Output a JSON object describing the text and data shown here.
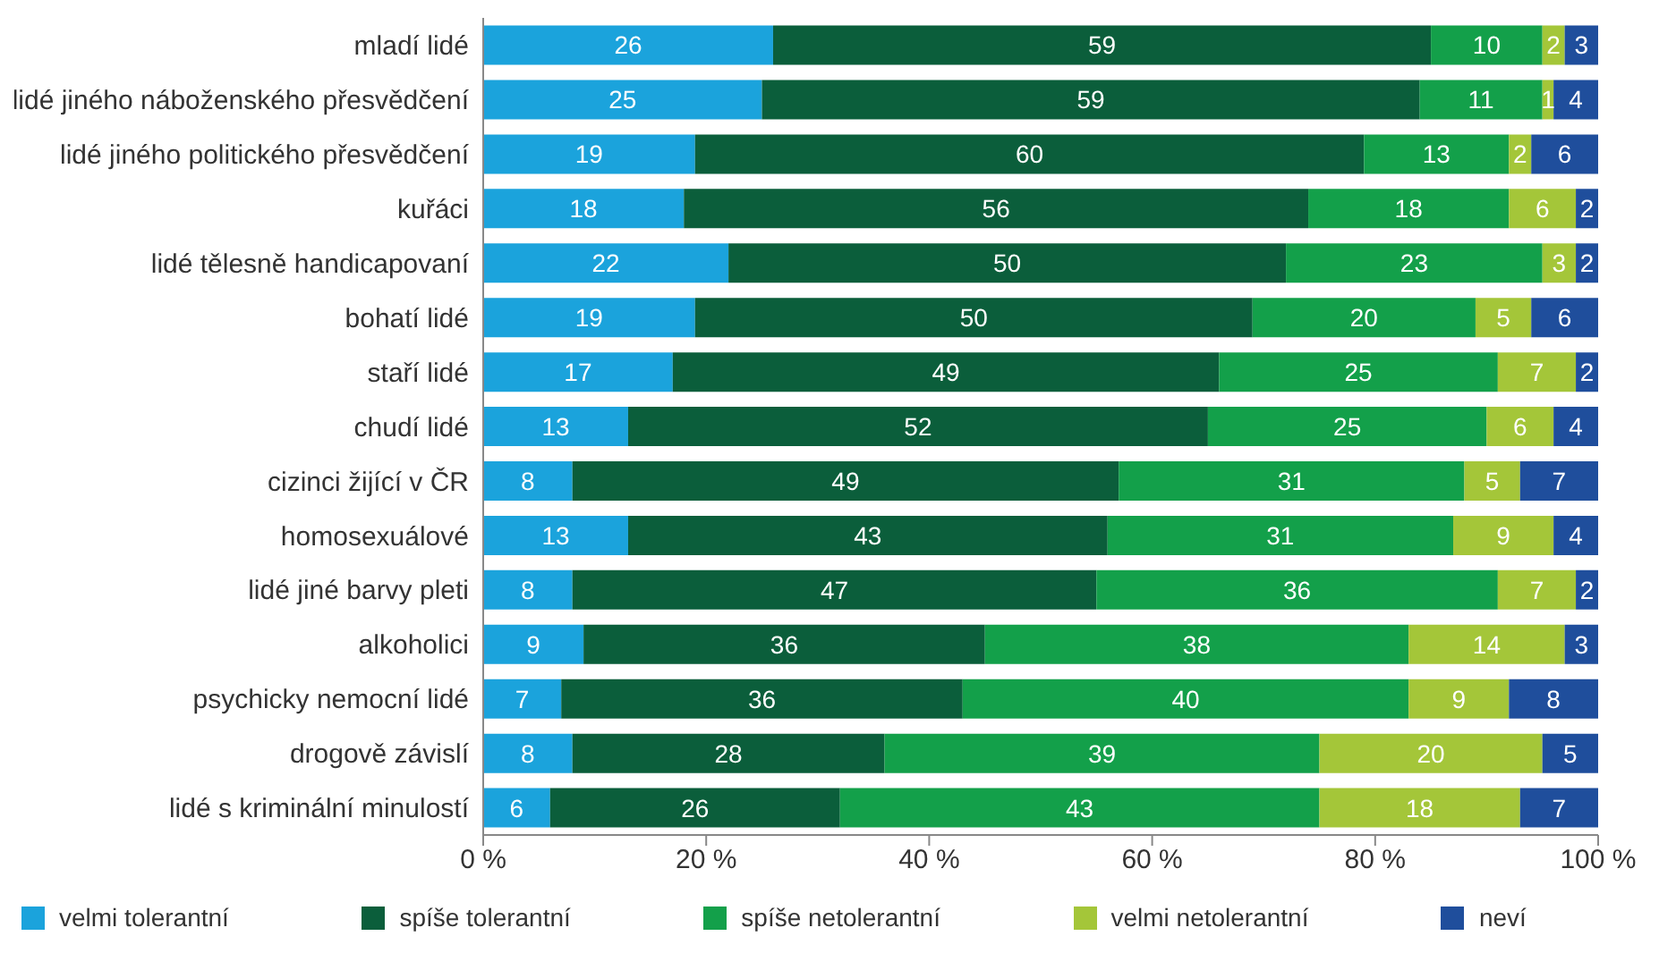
{
  "chart_data": {
    "type": "bar",
    "orientation": "horizontal",
    "stacked": true,
    "data_labels": true,
    "grid": false,
    "legend": "bottom",
    "categories": [
      "mladí lidé",
      "lidé jiného náboženského přesvědčení",
      "lidé jiného politického přesvědčení",
      "kuřáci",
      "lidé tělesně handicapovaní",
      "bohatí lidé",
      "staří lidé",
      "chudí lidé",
      "cizinci žijící v ČR",
      "homosexuálové",
      "lidé jiné barvy pleti",
      "alkoholici",
      "psychicky nemocní lidé",
      "drogově závislí",
      "lidé s kriminální minulostí"
    ],
    "xlim": [
      0,
      100
    ],
    "xticks": [
      {
        "value": 0,
        "label": "0 %"
      },
      {
        "value": 20,
        "label": "20 %"
      },
      {
        "value": 40,
        "label": "40 %"
      },
      {
        "value": 60,
        "label": "60 %"
      },
      {
        "value": 80,
        "label": "80 %"
      },
      {
        "value": 100,
        "label": "100 %"
      }
    ],
    "series": [
      {
        "name": "velmi tolerantní",
        "color": "#1ba3dc",
        "values": [
          26,
          25,
          19,
          18,
          22,
          19,
          17,
          13,
          8,
          13,
          8,
          9,
          7,
          8,
          6
        ]
      },
      {
        "name": "spíše tolerantní",
        "color": "#0b5e3b",
        "values": [
          59,
          59,
          60,
          56,
          50,
          50,
          49,
          52,
          49,
          43,
          47,
          36,
          36,
          28,
          26
        ]
      },
      {
        "name": "spíše netolerantní",
        "color": "#13a04a",
        "values": [
          10,
          11,
          13,
          18,
          23,
          20,
          25,
          25,
          31,
          31,
          36,
          38,
          40,
          39,
          43
        ]
      },
      {
        "name": "velmi netolerantní",
        "color": "#a4c639",
        "values": [
          2,
          1,
          2,
          6,
          3,
          5,
          7,
          6,
          5,
          9,
          7,
          14,
          9,
          20,
          18
        ]
      },
      {
        "name": "neví",
        "color": "#1f4e9c",
        "values": [
          3,
          4,
          6,
          2,
          2,
          6,
          2,
          4,
          7,
          4,
          2,
          3,
          8,
          5,
          7
        ]
      }
    ]
  }
}
